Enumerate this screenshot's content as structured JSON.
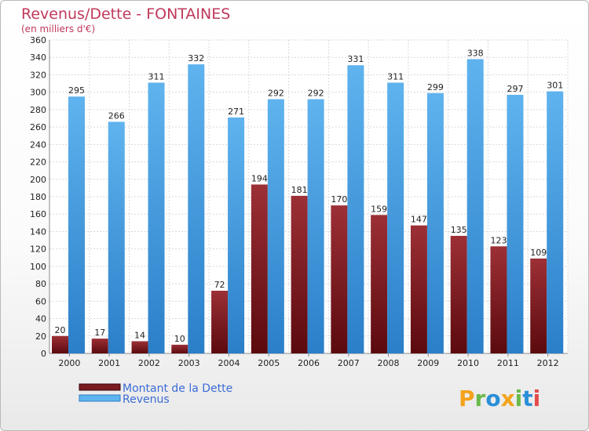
{
  "chart_data": {
    "type": "bar",
    "title": "Revenus/Dette - FONTAINES",
    "subtitle": "(en milliers d'€)",
    "categories": [
      "2000",
      "2001",
      "2002",
      "2003",
      "2004",
      "2005",
      "2006",
      "2007",
      "2008",
      "2009",
      "2010",
      "2011",
      "2012"
    ],
    "series": [
      {
        "name": "Montant de la Dette",
        "values": [
          20,
          17,
          14,
          10,
          72,
          194,
          181,
          170,
          159,
          147,
          135,
          123,
          109
        ],
        "color": "#7a1a1f"
      },
      {
        "name": "Revenus",
        "values": [
          295,
          266,
          311,
          332,
          271,
          292,
          292,
          331,
          311,
          299,
          338,
          297,
          301
        ],
        "color": "#4a9fe0"
      }
    ],
    "ylim": [
      0,
      360
    ],
    "yticks": [
      0,
      20,
      40,
      60,
      80,
      100,
      120,
      140,
      160,
      180,
      200,
      220,
      240,
      260,
      280,
      300,
      320,
      340,
      360
    ],
    "grid": true,
    "legend_position": "bottom-left"
  },
  "logo": {
    "text": "Proxiti",
    "letters": [
      "P",
      "r",
      "o",
      "x",
      "i",
      "t",
      "i"
    ],
    "colors": [
      "#f3a31b",
      "#6ab94a",
      "#2a8fd7",
      "#f3a31b",
      "#6ab94a",
      "#2a8fd7",
      "#e24b4b"
    ]
  }
}
